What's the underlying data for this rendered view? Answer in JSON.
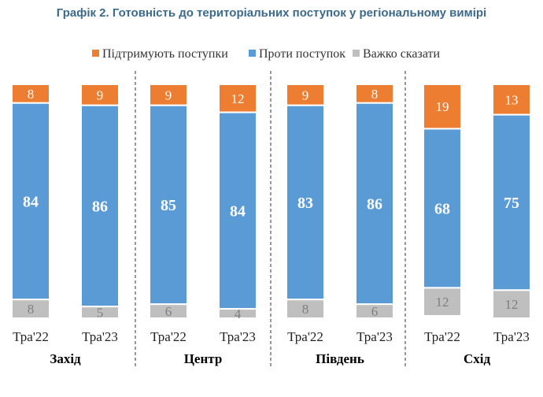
{
  "title": "Графік 2. Готовність до територіальних поступок у регіональному вимірі",
  "chart_data": {
    "type": "bar",
    "stacked": true,
    "orientation": "vertical",
    "legend_position": "top",
    "grid": false,
    "series": [
      {
        "name": "Підтримують поступки",
        "color": "#ED7D31"
      },
      {
        "name": "Проти поступок",
        "color": "#5B9BD5"
      },
      {
        "name": "Важко сказати",
        "color": "#BFBFBF"
      }
    ],
    "groups": [
      {
        "name": "Захід",
        "bars": [
          {
            "label": "Тра'22",
            "values": [
              8,
              84,
              8
            ]
          },
          {
            "label": "Тра'23",
            "values": [
              9,
              86,
              5
            ]
          }
        ]
      },
      {
        "name": "Центр",
        "bars": [
          {
            "label": "Тра'22",
            "values": [
              9,
              85,
              6
            ]
          },
          {
            "label": "Тра'23",
            "values": [
              12,
              84,
              4
            ]
          }
        ]
      },
      {
        "name": "Південь",
        "bars": [
          {
            "label": "Тра'22",
            "values": [
              9,
              83,
              8
            ]
          },
          {
            "label": "Тра'23",
            "values": [
              8,
              86,
              6
            ]
          }
        ]
      },
      {
        "name": "Схід",
        "bars": [
          {
            "label": "Тра'22",
            "values": [
              19,
              68,
              12
            ]
          },
          {
            "label": "Тра'23",
            "values": [
              13,
              75,
              12
            ]
          }
        ]
      }
    ],
    "ylim": [
      0,
      100
    ]
  }
}
